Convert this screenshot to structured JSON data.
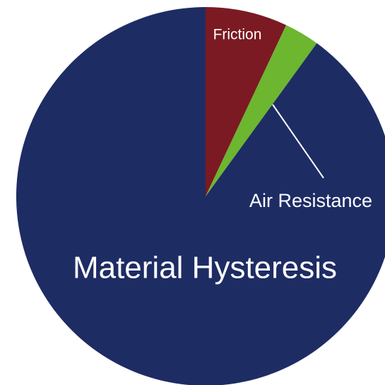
{
  "chart_data": {
    "type": "pie",
    "categories": [
      "Friction",
      "Air Resistance",
      "Material Hysteresis"
    ],
    "values": [
      7,
      3,
      90
    ],
    "colors": [
      "#7b1a22",
      "#6db630",
      "#1e2c64"
    ]
  }
}
